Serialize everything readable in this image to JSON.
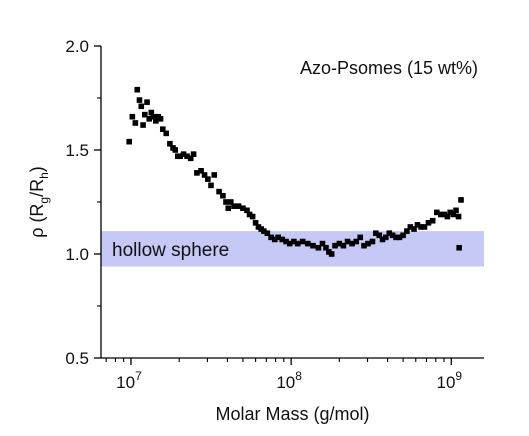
{
  "chart_data": {
    "type": "scatter",
    "title": "",
    "annotation": "Azo-Psomes (15 wt%)",
    "band_label": "hollow sphere",
    "band_range": [
      0.94,
      1.11
    ],
    "band_color": "#c6c8f5",
    "marker_color": "#000000",
    "xlabel": "Molar Mass (g/mol)",
    "ylabel": "ρ (R",
    "ylabel_sub1": "g",
    "ylabel_mid": "/R",
    "ylabel_sub2": "h",
    "ylabel_end": ")",
    "x_scale": "log",
    "xlim": [
      6500000,
      1600000000
    ],
    "ylim": [
      0.5,
      2.0
    ],
    "x_ticks": [
      {
        "value": 10000000,
        "base": "10",
        "exp": "7"
      },
      {
        "value": 100000000,
        "base": "10",
        "exp": "8"
      },
      {
        "value": 1000000000,
        "base": "10",
        "exp": "9"
      }
    ],
    "y_ticks": [
      {
        "value": 0.5,
        "label": "0.5"
      },
      {
        "value": 1.0,
        "label": "1.0"
      },
      {
        "value": 1.5,
        "label": "1.5"
      },
      {
        "value": 2.0,
        "label": "2.0"
      }
    ],
    "points": [
      [
        9750000,
        1.54
      ],
      [
        10200000,
        1.66
      ],
      [
        10650000,
        1.63
      ],
      [
        10950000,
        1.79
      ],
      [
        11300000,
        1.74
      ],
      [
        11600000,
        1.71
      ],
      [
        11900000,
        1.62
      ],
      [
        12200000,
        1.67
      ],
      [
        12600000,
        1.73
      ],
      [
        13000000,
        1.65
      ],
      [
        13400000,
        1.68
      ],
      [
        13800000,
        1.66
      ],
      [
        14300000,
        1.64
      ],
      [
        14800000,
        1.66
      ],
      [
        15300000,
        1.65
      ],
      [
        15800000,
        1.6
      ],
      [
        16600000,
        1.58
      ],
      [
        17500000,
        1.53
      ],
      [
        18300000,
        1.51
      ],
      [
        18900000,
        1.5
      ],
      [
        19600000,
        1.47
      ],
      [
        20300000,
        1.47
      ],
      [
        21300000,
        1.48
      ],
      [
        22400000,
        1.47
      ],
      [
        23600000,
        1.46
      ],
      [
        24600000,
        1.48
      ],
      [
        25800000,
        1.39
      ],
      [
        27400000,
        1.4
      ],
      [
        28800000,
        1.38
      ],
      [
        30200000,
        1.36
      ],
      [
        31600000,
        1.33
      ],
      [
        33100000,
        1.38
      ],
      [
        35500000,
        1.3
      ],
      [
        37500000,
        1.28
      ],
      [
        39200000,
        1.25
      ],
      [
        40500000,
        1.22
      ],
      [
        42000000,
        1.25
      ],
      [
        44000000,
        1.23
      ],
      [
        47000000,
        1.23
      ],
      [
        50000000,
        1.22
      ],
      [
        53000000,
        1.21
      ],
      [
        55000000,
        1.19
      ],
      [
        57500000,
        1.18
      ],
      [
        60000000,
        1.15
      ],
      [
        62500000,
        1.13
      ],
      [
        65000000,
        1.12
      ],
      [
        67500000,
        1.11
      ],
      [
        71000000,
        1.1
      ],
      [
        75000000,
        1.08
      ],
      [
        79000000,
        1.07
      ],
      [
        83000000,
        1.08
      ],
      [
        88000000,
        1.07
      ],
      [
        93000000,
        1.06
      ],
      [
        98000000,
        1.05
      ],
      [
        104000000,
        1.06
      ],
      [
        110000000,
        1.05
      ],
      [
        118000000,
        1.06
      ],
      [
        127000000,
        1.05
      ],
      [
        137000000,
        1.04
      ],
      [
        148000000,
        1.03
      ],
      [
        157000000,
        1.05
      ],
      [
        165000000,
        1.03
      ],
      [
        172000000,
        1.01
      ],
      [
        179000000,
        1.0
      ],
      [
        188000000,
        1.04
      ],
      [
        200000000,
        1.05
      ],
      [
        212000000,
        1.04
      ],
      [
        225000000,
        1.06
      ],
      [
        240000000,
        1.05
      ],
      [
        255000000,
        1.06
      ],
      [
        270000000,
        1.08
      ],
      [
        285000000,
        1.04
      ],
      [
        302000000,
        1.05
      ],
      [
        322000000,
        1.06
      ],
      [
        338000000,
        1.1
      ],
      [
        355000000,
        1.09
      ],
      [
        372000000,
        1.07
      ],
      [
        390000000,
        1.08
      ],
      [
        410000000,
        1.1
      ],
      [
        430000000,
        1.09
      ],
      [
        452000000,
        1.08
      ],
      [
        475000000,
        1.08
      ],
      [
        500000000,
        1.09
      ],
      [
        528000000,
        1.11
      ],
      [
        555000000,
        1.13
      ],
      [
        585000000,
        1.12
      ],
      [
        615000000,
        1.14
      ],
      [
        648000000,
        1.13
      ],
      [
        680000000,
        1.13
      ],
      [
        720000000,
        1.15
      ],
      [
        765000000,
        1.16
      ],
      [
        812000000,
        1.2
      ],
      [
        860000000,
        1.19
      ],
      [
        905000000,
        1.19
      ],
      [
        945000000,
        1.18
      ],
      [
        985000000,
        1.2
      ],
      [
        1030000000,
        1.19
      ],
      [
        1070000000,
        1.21
      ],
      [
        1110000000,
        1.18
      ],
      [
        1150000000,
        1.26
      ],
      [
        1120000000,
        1.03
      ]
    ]
  }
}
